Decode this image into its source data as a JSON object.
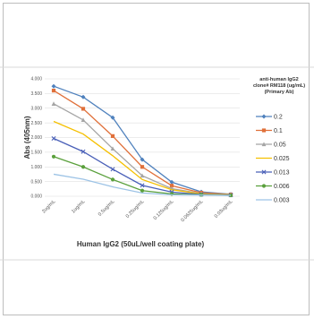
{
  "chart_data": {
    "type": "line",
    "xlabel": "Human IgG2 (50uL/well coating plate)",
    "ylabel": "Abs (405nm)",
    "ylim": [
      0,
      4.0
    ],
    "yticks": [
      "0.000",
      "0.500",
      "1.000",
      "1.500",
      "2.000",
      "2.500",
      "3.000",
      "3.500",
      "4.000"
    ],
    "categories": [
      "2ug/mL",
      "1ug/mL",
      "0.5ug/mL",
      "0.25ug/mL",
      "0.125ug/mL",
      "0.0625ug/mL",
      "0.03ug/mL"
    ],
    "grid": "horizontal",
    "legend_position": "right",
    "legend_title": [
      "anti-human IgG2",
      "clone# RM118 (ug/mL)",
      "(Primary Ab)"
    ],
    "series": [
      {
        "name": "0.2",
        "color": "#4f81bd",
        "marker": "diamond",
        "values": [
          3.75,
          3.38,
          2.68,
          1.25,
          0.48,
          0.15,
          0.07
        ]
      },
      {
        "name": "0.1",
        "color": "#e0703a",
        "marker": "square",
        "values": [
          3.6,
          2.98,
          2.05,
          1.0,
          0.36,
          0.12,
          0.06
        ]
      },
      {
        "name": "0.05",
        "color": "#a5a5a5",
        "marker": "triangle",
        "values": [
          3.15,
          2.6,
          1.62,
          0.7,
          0.26,
          0.09,
          0.05
        ]
      },
      {
        "name": "0.025",
        "color": "#f5c000",
        "marker": "none",
        "values": [
          2.55,
          2.12,
          1.38,
          0.57,
          0.22,
          0.08,
          0.05
        ]
      },
      {
        "name": "0.013",
        "color": "#4a60b8",
        "marker": "cross",
        "values": [
          1.97,
          1.52,
          0.92,
          0.37,
          0.14,
          0.06,
          0.04
        ]
      },
      {
        "name": "0.006",
        "color": "#5aa03c",
        "marker": "circle",
        "values": [
          1.35,
          1.0,
          0.57,
          0.19,
          0.08,
          0.05,
          0.03
        ]
      },
      {
        "name": "0.003",
        "color": "#9dc3e6",
        "marker": "none",
        "values": [
          0.75,
          0.58,
          0.32,
          0.11,
          0.05,
          0.04,
          0.03
        ]
      }
    ]
  }
}
